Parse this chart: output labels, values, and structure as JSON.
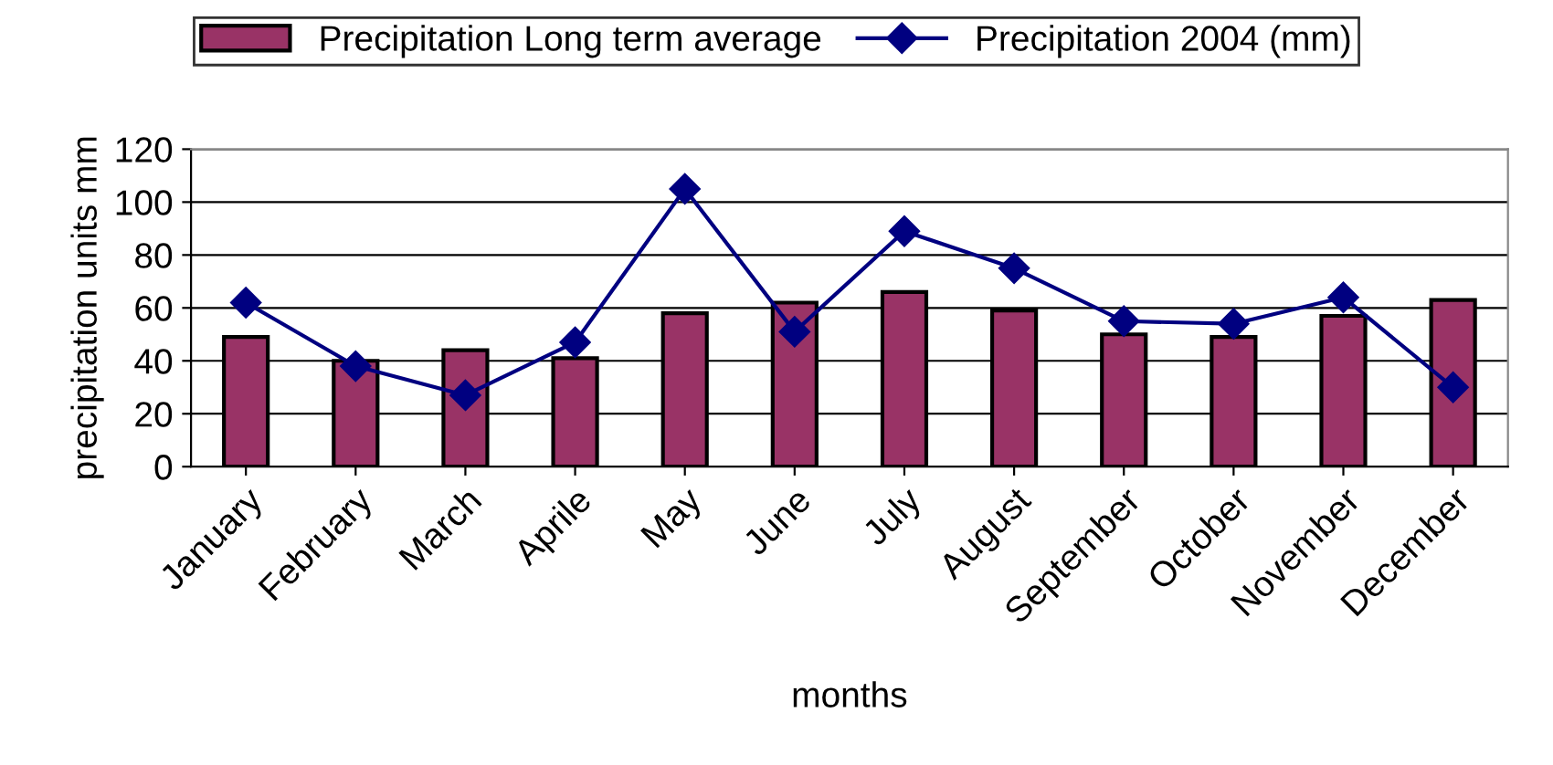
{
  "chart_data": {
    "type": "bar",
    "xlabel": "months",
    "ylabel": "precipitation units mm",
    "categories": [
      "January",
      "February",
      "March",
      "Aprile",
      "May",
      "June",
      "July",
      "August",
      "September",
      "October",
      "November",
      "December"
    ],
    "series": [
      {
        "name": "Precipitation Long term average",
        "color": "#993366",
        "values": [
          49,
          40,
          44,
          41,
          58,
          62,
          66,
          59,
          50,
          49,
          57,
          63
        ]
      },
      {
        "name": "Precipitation 2004 (mm)",
        "type": "line",
        "color": "#000080",
        "values": [
          62,
          38,
          27,
          47,
          105,
          51,
          89,
          75,
          55,
          54,
          64,
          30
        ]
      }
    ],
    "ylim": [
      0,
      120
    ],
    "yticks": [
      0,
      20,
      40,
      60,
      80,
      100,
      120
    ],
    "grid": "y",
    "legend": "top",
    "marker": "diamond",
    "line_style": "solid"
  }
}
